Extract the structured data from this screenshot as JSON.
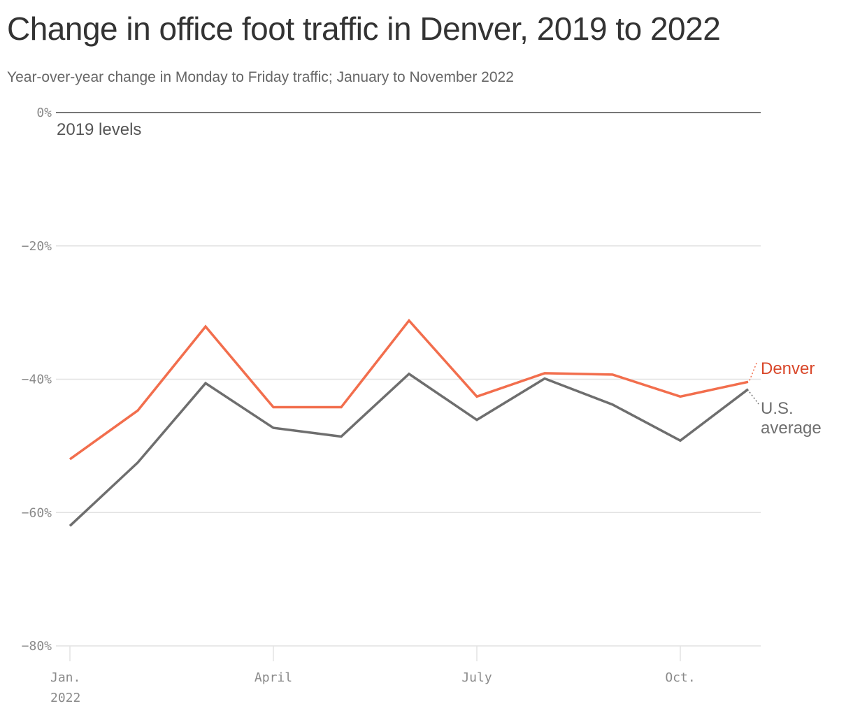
{
  "title": "Change in office foot traffic in Denver, 2019 to 2022",
  "subtitle": "Year-over-year change in Monday to Friday traffic; January to November 2022",
  "colors": {
    "denver": "#F26E4D",
    "denver_label": "#D9482B",
    "us": "#6E6E6E",
    "grid": "#E2E2E2",
    "zero_line": "#777777"
  },
  "chart_data": {
    "type": "line",
    "title": "Change in office foot traffic in Denver, 2019 to 2022",
    "subtitle": "Year-over-year change in Monday to Friday traffic; January to November 2022",
    "x": [
      "2022-01",
      "2022-02",
      "2022-03",
      "2022-04",
      "2022-05",
      "2022-06",
      "2022-07",
      "2022-08",
      "2022-09",
      "2022-10",
      "2022-11"
    ],
    "series": [
      {
        "name": "Denver",
        "values": [
          -52,
          -44.7,
          -32.1,
          -44.2,
          -44.2,
          -31.2,
          -42.6,
          -39.1,
          -39.3,
          -42.6,
          -40.4
        ]
      },
      {
        "name": "U.S. average",
        "values": [
          -62,
          -52.5,
          -40.6,
          -47.3,
          -48.6,
          -39.2,
          -46.1,
          -39.9,
          -43.8,
          -49.2,
          -41.5
        ]
      }
    ],
    "ylim": [
      -80,
      0
    ],
    "y_ticks": [
      {
        "value": 0,
        "label": "0%"
      },
      {
        "value": -20,
        "label": "-20%"
      },
      {
        "value": -40,
        "label": "-40%"
      },
      {
        "value": -60,
        "label": "-60%"
      },
      {
        "value": -80,
        "label": "-80%"
      }
    ],
    "x_ticks": [
      {
        "value": "2022-01",
        "label": "Jan.",
        "sublabel": "2022"
      },
      {
        "value": "2022-04",
        "label": "April"
      },
      {
        "value": "2022-07",
        "label": "July"
      },
      {
        "value": "2022-10",
        "label": "Oct."
      }
    ],
    "annotations": [
      {
        "text": "2019 levels",
        "at_y": 0
      }
    ],
    "legend": "direct labels at line ends",
    "grid": true
  }
}
